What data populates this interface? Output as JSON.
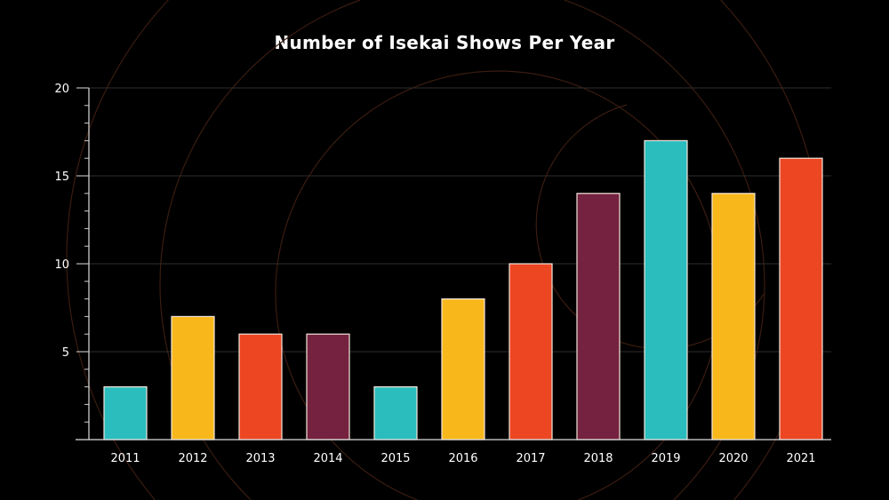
{
  "chart_data": {
    "type": "bar",
    "title": "Number of Isekai Shows Per Year",
    "xlabel": "",
    "ylabel": "",
    "categories": [
      "2011",
      "2012",
      "2013",
      "2014",
      "2015",
      "2016",
      "2017",
      "2018",
      "2019",
      "2020",
      "2021"
    ],
    "values": [
      3,
      7,
      6,
      6,
      3,
      8,
      10,
      14,
      17,
      14,
      16
    ],
    "colors": [
      "#2bbdbd",
      "#f8b81c",
      "#ec4622",
      "#74223f",
      "#2bbdbd",
      "#f8b81c",
      "#ec4622",
      "#74223f",
      "#2bbdbd",
      "#f8b81c",
      "#ec4622"
    ],
    "ylim": [
      0,
      20
    ],
    "yticks": [
      5,
      10,
      15,
      20
    ],
    "grid": true
  }
}
